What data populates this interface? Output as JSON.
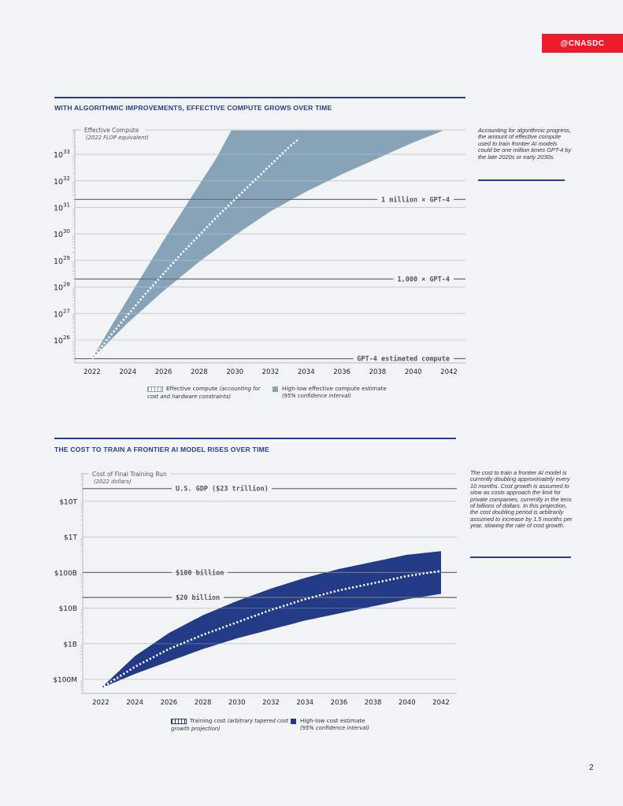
{
  "badge": "@CNASDC",
  "page_number": "2",
  "colors": {
    "accent_red": "#ec1c2d",
    "navy": "#27408b",
    "band_blue_gray": "#86a3b8",
    "band_navy": "#233b86"
  },
  "section1": {
    "title": "WITH ALGORITHMIC IMPROVEMENTS, EFFECTIVE COMPUTE GROWS OVER TIME",
    "note": "Accounting for algorithmic progress, the amount of effective compute used to train frontier AI models could be one million times GPT-4 by the late 2020s or early 2030s.",
    "legend": {
      "line_label": "Effective compute",
      "line_label_italic": "(accounting for cost and hardware constraints)",
      "band_label": "High-low effective compute estimate",
      "band_label_italic": "(95% confidence interval)"
    }
  },
  "section2": {
    "title": "THE COST TO TRAIN A FRONTIER AI MODEL RISES OVER TIME",
    "note": "The cost to train a frontier AI model is currently doubling approximately every 10 months. Cost growth is assumed to slow as costs approach the limit for private companies, currently in the tens of billions of dollars. In this projection, the cost doubling period is arbitrarily assumed to increase by 1.5 months per year, slowing the rate of cost growth.",
    "legend": {
      "line_label": "Training cost",
      "line_label_italic": "(arbitrary tapered cost growth projection)",
      "band_label": "High-low cost estimate",
      "band_label_italic": "(95% confidence interval)"
    }
  },
  "chart_data": [
    {
      "type": "area",
      "title": "WITH ALGORITHMIC IMPROVEMENTS, EFFECTIVE COMPUTE GROWS OVER TIME",
      "ylabel": "Effective Compute",
      "ylabel_sub": "(2022 FLOP equivalent)",
      "yscale": "log10",
      "ylim_exponent": [
        25.0,
        33.9
      ],
      "y_ticks": [
        26,
        27,
        28,
        29,
        30,
        31,
        32,
        33
      ],
      "y_tick_labels": [
        "10^26",
        "10^27",
        "10^28",
        "10^29",
        "10^30",
        "10^31",
        "10^32",
        "10^33"
      ],
      "x_ticks": [
        2022,
        2024,
        2026,
        2028,
        2030,
        2032,
        2034,
        2036,
        2038,
        2040,
        2042
      ],
      "xlim": [
        2021.5,
        2042.3
      ],
      "grid": true,
      "reference_lines": [
        {
          "label": "GPT-4 estimated compute",
          "log10_value": 25.3
        },
        {
          "label": "1,000 × GPT-4",
          "log10_value": 28.3
        },
        {
          "label": "1 million × GPT-4",
          "log10_value": 31.3
        }
      ],
      "series": [
        {
          "name": "Effective compute (accounting for cost and hardware constraints)",
          "style": "dotted",
          "x": [
            2022,
            2023,
            2024,
            2025,
            2026,
            2027,
            2028,
            2029,
            2030,
            2031,
            2032,
            2033,
            2033.6
          ],
          "log10_y": [
            25.3,
            26.15,
            26.95,
            27.75,
            28.5,
            29.25,
            29.95,
            30.65,
            31.3,
            31.95,
            32.6,
            33.25,
            33.6
          ]
        },
        {
          "name": "High-low effective compute estimate (95% confidence interval) - high",
          "x": [
            2022,
            2023,
            2024,
            2025,
            2026,
            2027,
            2028,
            2029,
            2029.8
          ],
          "log10_y": [
            25.3,
            26.45,
            27.55,
            28.65,
            29.75,
            30.8,
            31.85,
            32.9,
            33.9
          ]
        },
        {
          "name": "High-low effective compute estimate (95% confidence interval) - low",
          "x": [
            2022,
            2024,
            2026,
            2028,
            2030,
            2032,
            2034,
            2036,
            2038,
            2040,
            2041.7
          ],
          "log10_y": [
            25.3,
            26.65,
            27.85,
            28.95,
            29.95,
            30.85,
            31.6,
            32.25,
            32.85,
            33.45,
            33.9
          ]
        }
      ],
      "legend": [
        "Effective compute (accounting for cost and hardware constraints)",
        "High-low effective compute estimate (95% confidence interval)"
      ],
      "legend_position": "bottom"
    },
    {
      "type": "area",
      "title": "THE COST TO TRAIN A FRONTIER AI MODEL RISES OVER TIME",
      "ylabel": "Cost of Final Training Run",
      "ylabel_sub": "(2022 dollars)",
      "yscale": "log10",
      "ylim_exponent": [
        7.7,
        13.5
      ],
      "y_ticks": [
        8,
        9,
        10,
        11,
        12,
        13
      ],
      "y_tick_labels": [
        "$100M",
        "$1B",
        "$10B",
        "$100B",
        "$1T",
        "$10T"
      ],
      "x_ticks": [
        2022,
        2024,
        2026,
        2028,
        2030,
        2032,
        2034,
        2036,
        2038,
        2040,
        2042
      ],
      "xlim": [
        2021.5,
        2042.5
      ],
      "grid": true,
      "reference_lines": [
        {
          "label": "U.S. GDP ($23 trillion)",
          "log10_value": 13.36
        },
        {
          "label": "$100 billion",
          "log10_value": 11.0
        },
        {
          "label": "$20 billion",
          "log10_value": 10.3
        }
      ],
      "series": [
        {
          "name": "Training cost (arbitrary tapered cost growth projection)",
          "style": "dotted",
          "x": [
            2022,
            2024,
            2026,
            2028,
            2030,
            2032,
            2034,
            2036,
            2038,
            2040,
            2042
          ],
          "log10_y": [
            7.75,
            8.35,
            8.85,
            9.25,
            9.6,
            9.95,
            10.25,
            10.5,
            10.7,
            10.9,
            11.05
          ]
        },
        {
          "name": "High-low cost estimate (95% confidence interval) - high",
          "x": [
            2022,
            2024,
            2026,
            2028,
            2030,
            2032,
            2034,
            2036,
            2038,
            2040,
            2042
          ],
          "log10_y": [
            7.75,
            8.65,
            9.3,
            9.8,
            10.2,
            10.55,
            10.85,
            11.1,
            11.3,
            11.5,
            11.6
          ]
        },
        {
          "name": "High-low cost estimate (95% confidence interval) - low",
          "x": [
            2022,
            2024,
            2026,
            2028,
            2030,
            2032,
            2034,
            2036,
            2038,
            2040,
            2042
          ],
          "log10_y": [
            7.75,
            8.15,
            8.5,
            8.85,
            9.15,
            9.4,
            9.65,
            9.85,
            10.05,
            10.25,
            10.4
          ]
        }
      ],
      "legend": [
        "Training cost (arbitrary tapered cost growth projection)",
        "High-low cost estimate (95% confidence interval)"
      ],
      "legend_position": "bottom"
    }
  ]
}
